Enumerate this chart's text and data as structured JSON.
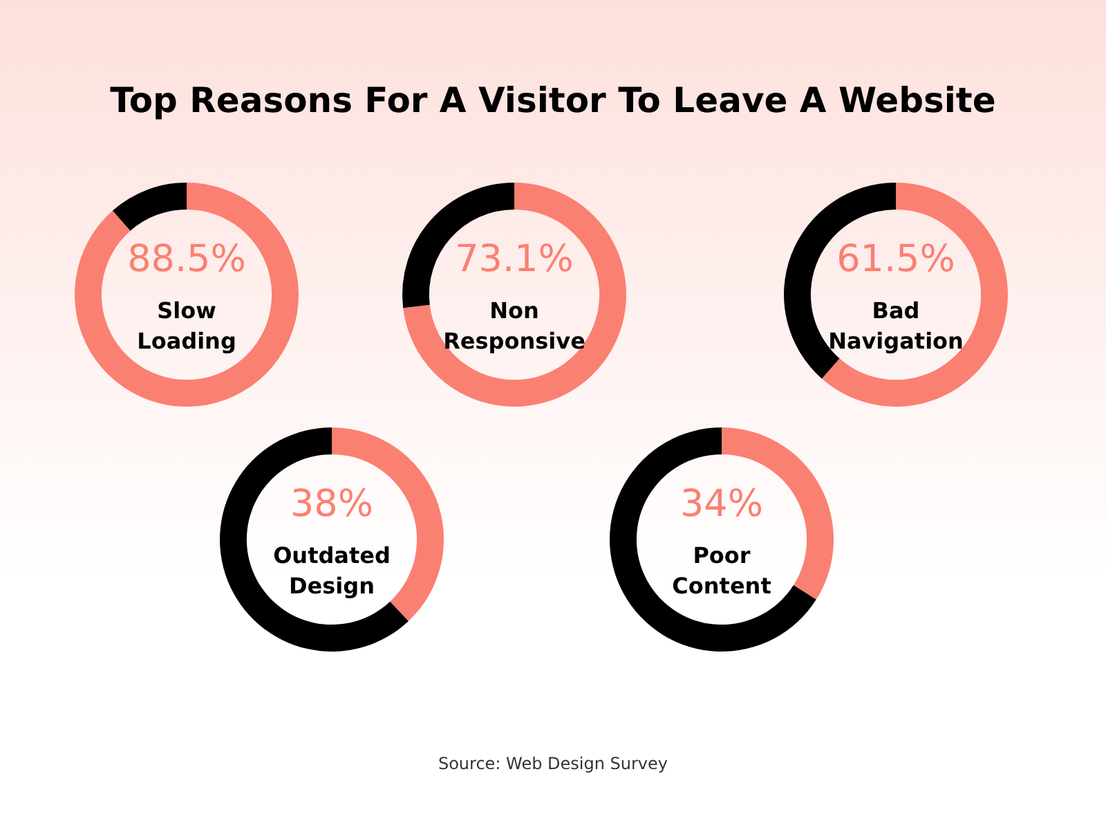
{
  "chart_data": [
    {
      "type": "donut",
      "title": "Top Reasons For A Visitor To Leave A Website",
      "categories": [
        "Slow Loading",
        null
      ],
      "values": [
        88.5,
        11.5
      ],
      "value_labels": [
        "88.5%",
        null
      ],
      "colors": [
        "#fa8072",
        "#000000"
      ]
    },
    {
      "type": "donut",
      "categories": [
        "Non Responsive",
        null
      ],
      "values": [
        73.1,
        26.9
      ],
      "value_labels": [
        "73.1%",
        null
      ],
      "colors": [
        "#fa8072",
        "#000000"
      ]
    },
    {
      "type": "donut",
      "categories": [
        "Bad Navigation",
        null
      ],
      "values": [
        61.5,
        38.5
      ],
      "value_labels": [
        "61.5%",
        null
      ],
      "colors": [
        "#fa8072",
        "#000000"
      ]
    },
    {
      "type": "donut",
      "categories": [
        "Outdated Design",
        null
      ],
      "values": [
        38,
        62
      ],
      "value_labels": [
        "38%",
        null
      ],
      "colors": [
        "#fa8072",
        "#000000"
      ]
    },
    {
      "type": "donut",
      "categories": [
        "Poor Content",
        null
      ],
      "values": [
        34,
        66
      ],
      "value_labels": [
        "34%",
        null
      ],
      "colors": [
        "#fa8072",
        "#000000"
      ],
      "annotations": [
        "Source: Web Design Survey"
      ]
    }
  ]
}
